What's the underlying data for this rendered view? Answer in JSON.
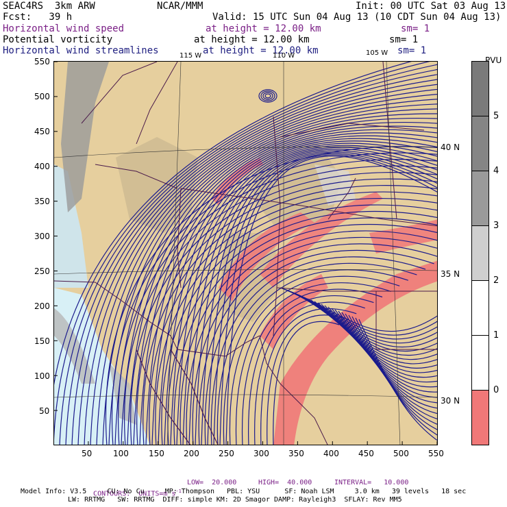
{
  "header": {
    "line1_left": "SEAC4RS  3km ARW",
    "line1_center": "NCAR/MMM",
    "line1_right": "Init: 00 UTC Sat 03 Aug 13",
    "line2_left": "Fcst:   39 h",
    "line2_right": "Valid: 15 UTC Sun 04 Aug 13 (10 CDT Sun 04 Aug 13)",
    "fields": [
      {
        "name": "Horizontal wind speed",
        "height": "at height = 12.00 km",
        "sm": "sm= 1",
        "color": "#7a1f86"
      },
      {
        "name": "Potential vorticity",
        "height": "at height = 12.00 km",
        "sm": "sm= 1",
        "color": "#000000"
      },
      {
        "name": "Horizontal wind streamlines",
        "height": "at height = 12.00 km",
        "sm": "sm= 1",
        "color": "#1e1e80"
      }
    ]
  },
  "axes": {
    "x_ticks": [
      "50",
      "100",
      "150",
      "200",
      "250",
      "300",
      "350",
      "400",
      "450",
      "500",
      "550"
    ],
    "y_ticks": [
      "50",
      "100",
      "150",
      "200",
      "250",
      "300",
      "350",
      "400",
      "450",
      "500",
      "550"
    ],
    "lat_labels": [
      "40 N",
      "35 N",
      "30 N"
    ],
    "lon_labels": [
      "115 W",
      "110 W",
      "105 W"
    ]
  },
  "colorbar": {
    "unit": "PVU",
    "labels": [
      "5",
      "4",
      "3",
      "2",
      "1",
      "0"
    ],
    "colors": [
      "#7a7a7a",
      "#9a9a9a",
      "#bdbdbd",
      "#d8d8d8",
      "#ffffff",
      "#ffffff",
      "#f07878"
    ]
  },
  "footer": {
    "contours": "CONTOURS:  UNITS=m s",
    "contours_exp": "-1",
    "low": "LOW=  20.000",
    "high": "HIGH=  40.000",
    "interval": "INTERVAL=   10.000",
    "line1": "Model Info: V3.5     CU: No Cu     MP: Thompson   PBL: YSU      SF: Noah LSM     3.0 km   39 levels   18 sec",
    "line2": "LW: RRTMG   SW: RRTMG  DIFF: simple KM: 2D Smagor DAMP: Rayleigh3  SFLAY: Rev MM5"
  },
  "colors": {
    "terrain": "#e8d4a8",
    "ocean": "#d8f0f6",
    "streamline": "#1a1a8c",
    "state_border": "#5a1a5a",
    "pv_high": "#f07878",
    "pv_gray": "#b8b8b8"
  }
}
